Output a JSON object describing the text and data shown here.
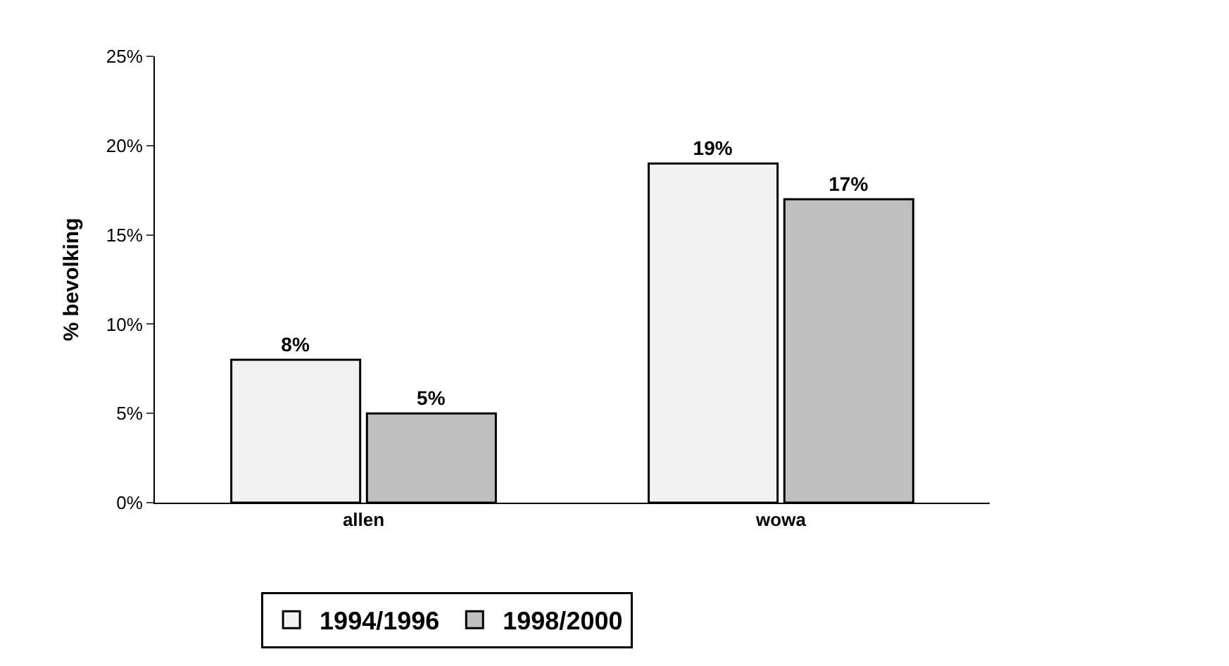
{
  "chart_data": {
    "type": "bar",
    "ylabel": "% bevolking",
    "categories": [
      "allen",
      "wowa"
    ],
    "series": [
      {
        "name": "1994/1996",
        "color": "#f2f2f2",
        "values": [
          8,
          19
        ],
        "value_labels": [
          "8%",
          "19%"
        ]
      },
      {
        "name": "1998/2000",
        "color": "#bfbfbf",
        "values": [
          5,
          17
        ],
        "value_labels": [
          "5%",
          "17%"
        ]
      }
    ],
    "ylim": [
      0,
      25
    ],
    "yticks": [
      {
        "value": 0,
        "label": "0%"
      },
      {
        "value": 5,
        "label": "5%"
      },
      {
        "value": 10,
        "label": "10%"
      },
      {
        "value": 15,
        "label": "15%"
      },
      {
        "value": 20,
        "label": "20%"
      },
      {
        "value": 25,
        "label": "25%"
      }
    ],
    "legend": "bottom"
  }
}
